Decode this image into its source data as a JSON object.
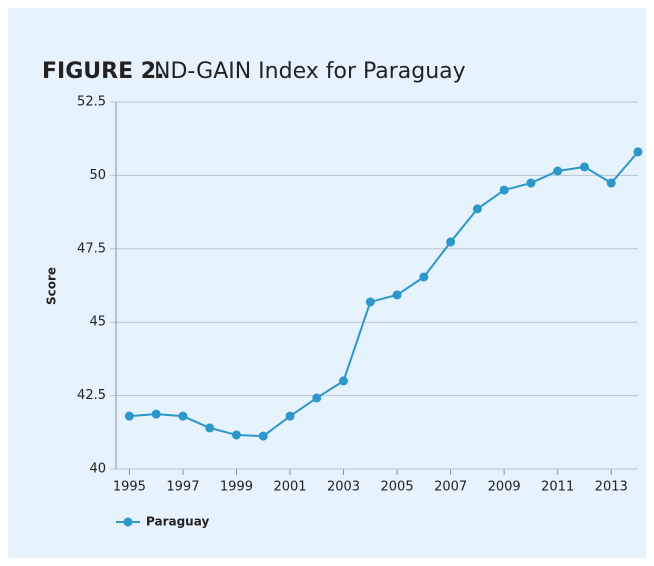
{
  "chart_data": {
    "type": "line",
    "title_label": "FIGURE 2.",
    "title": "ND-GAIN Index for Paraguay",
    "y_label": "Score",
    "x": [
      1995,
      1996,
      1997,
      1998,
      1999,
      2000,
      2001,
      2002,
      2003,
      2004,
      2005,
      2006,
      2007,
      2008,
      2009,
      2010,
      2011,
      2012,
      2013,
      2014
    ],
    "series": [
      {
        "name": "Paraguay",
        "color": "#2b97cb",
        "values": [
          41.8,
          41.87,
          41.8,
          41.4,
          41.16,
          41.12,
          41.8,
          42.42,
          43.0,
          45.69,
          45.93,
          46.54,
          47.73,
          48.86,
          49.5,
          49.74,
          50.15,
          50.29,
          49.74,
          50.8
        ]
      }
    ],
    "xlim": [
      1994.5,
      2014
    ],
    "xticks": [
      1995,
      1997,
      1999,
      2001,
      2003,
      2005,
      2007,
      2009,
      2011,
      2013
    ],
    "ylim": [
      40,
      52.5
    ],
    "yticks": [
      40,
      42.5,
      45,
      47.5,
      50,
      52.5
    ],
    "grid": true,
    "legend": "bottom-left"
  }
}
